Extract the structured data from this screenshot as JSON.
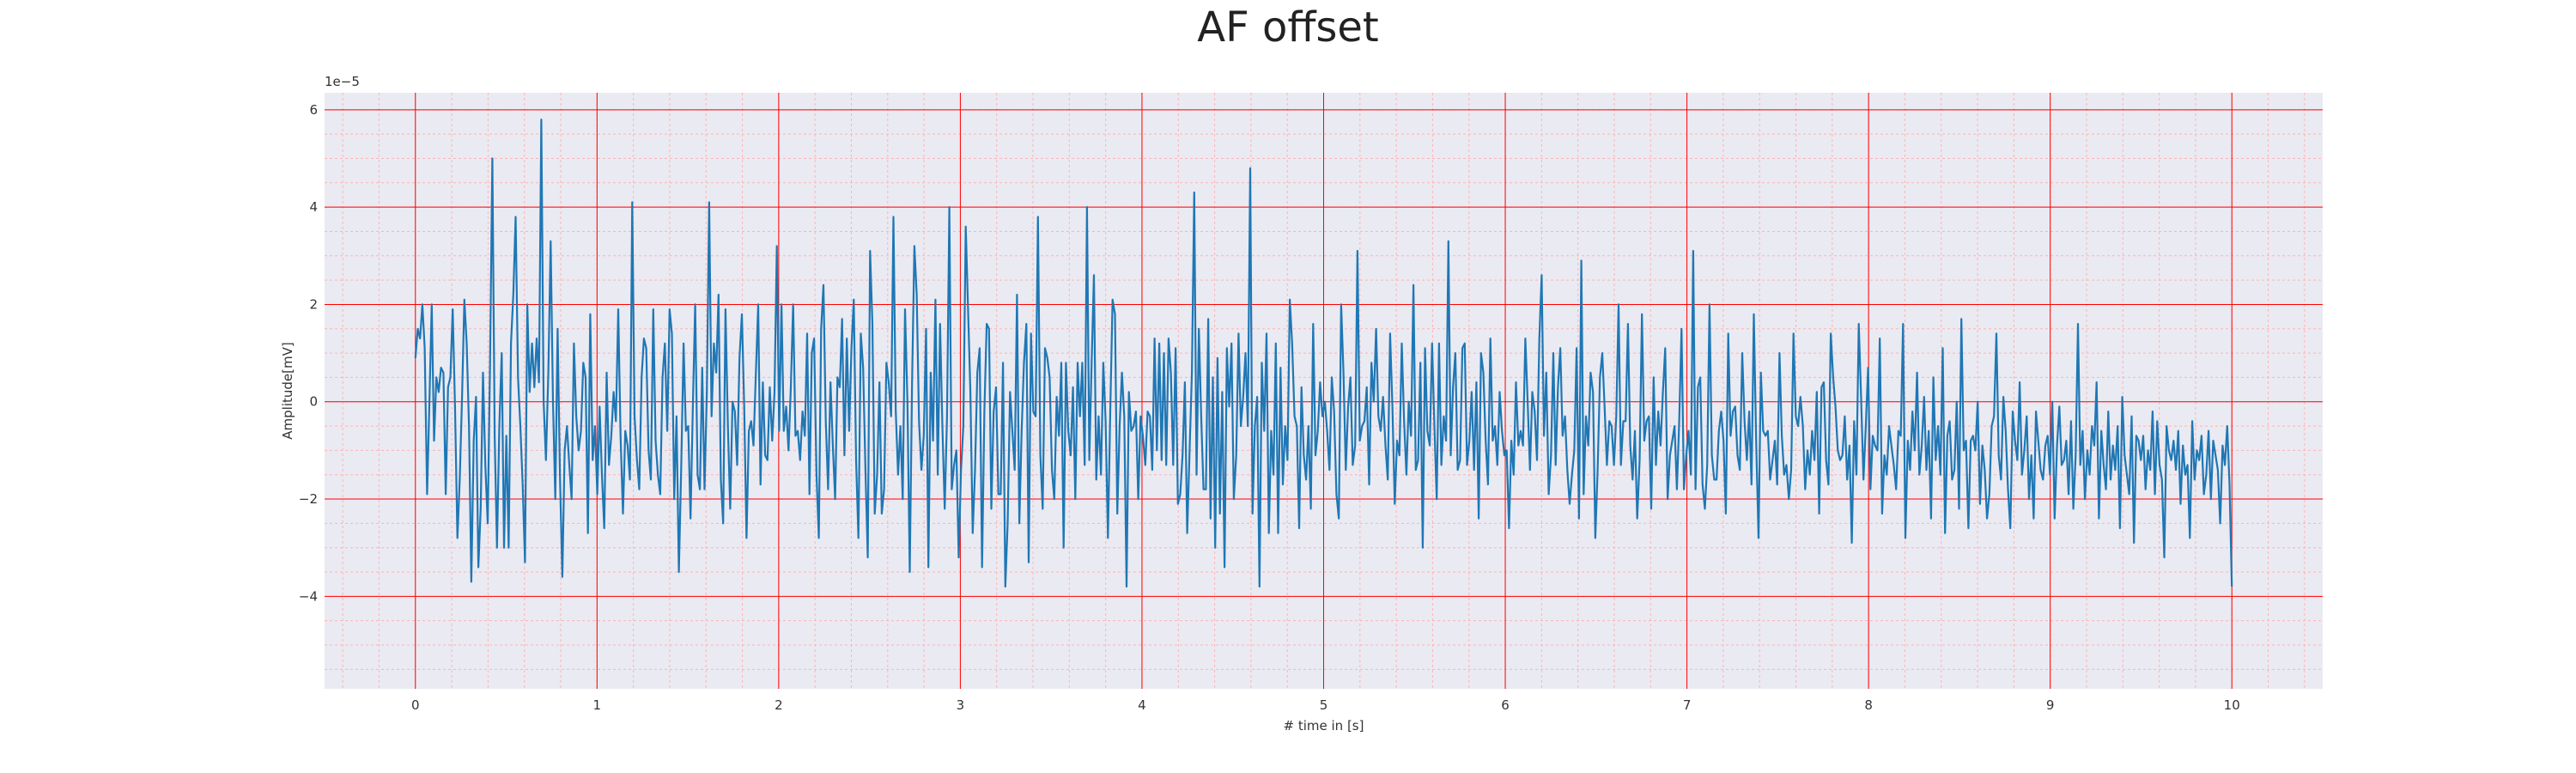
{
  "chart_data": {
    "type": "line",
    "title": "AF offset",
    "xlabel": "# time in [s]",
    "ylabel": "Amplitude[mV]",
    "y_offset_label": "1e−5",
    "xlim": [
      -0.5,
      10.5
    ],
    "ylim": [
      -5.9,
      6.35
    ],
    "x_ticks": [
      0,
      1,
      2,
      3,
      4,
      5,
      6,
      7,
      8,
      9,
      10
    ],
    "x_tick_labels": [
      "0",
      "1",
      "2",
      "3",
      "4",
      "5",
      "6",
      "7",
      "8",
      "9",
      "10"
    ],
    "y_ticks": [
      -4,
      -2,
      0,
      2,
      4,
      6
    ],
    "y_tick_labels": [
      "−4",
      "−2",
      "0",
      "2",
      "4",
      "6"
    ],
    "grid": true,
    "minor_grid": true,
    "colors": {
      "line": "#1f77b4",
      "plot_bg": "#eaeaf2",
      "major_grid": "#ff0000",
      "minor_grid": "#ffb3b3"
    },
    "series": [
      {
        "x_start": 0,
        "x_end": 10,
        "values": [
          0.9,
          1.5,
          1.3,
          2.0,
          1.1,
          -1.9,
          0.0,
          2.0,
          -0.8,
          0.5,
          0.2,
          0.7,
          0.6,
          -1.9,
          0.3,
          0.5,
          1.9,
          -0.1,
          -2.8,
          -1.6,
          0.1,
          2.1,
          1.2,
          -0.5,
          -3.7,
          -0.8,
          0.1,
          -3.4,
          -2.2,
          0.6,
          -1.3,
          -2.5,
          0.8,
          5.0,
          -0.7,
          -3.0,
          -0.5,
          1.0,
          -3.0,
          -0.7,
          -3.0,
          1.2,
          2.2,
          3.8,
          0.5,
          -0.5,
          -1.7,
          -3.3,
          2.0,
          0.2,
          1.2,
          0.3,
          1.3,
          0.4,
          5.8,
          0.0,
          -1.2,
          0.6,
          3.3,
          0.0,
          -2.0,
          1.5,
          -1.5,
          -3.6,
          -1.0,
          -0.5,
          -1.3,
          -2.0,
          1.2,
          -0.3,
          -1.0,
          -0.6,
          0.8,
          0.5,
          -2.7,
          1.8,
          -1.2,
          -0.5,
          -1.9,
          -0.1,
          -1.5,
          -2.6,
          0.6,
          -1.3,
          -0.7,
          0.2,
          -0.4,
          1.9,
          -0.7,
          -2.3,
          -0.6,
          -0.9,
          -1.6,
          4.1,
          -0.3,
          -1.2,
          -1.8,
          0.5,
          1.3,
          1.1,
          -1.0,
          -1.6,
          1.9,
          -0.8,
          -1.5,
          -1.9,
          0.5,
          1.2,
          -0.6,
          1.9,
          1.4,
          -2.0,
          -0.3,
          -3.5,
          -1.3,
          1.2,
          -0.6,
          -0.5,
          -2.4,
          -0.1,
          2.0,
          -1.5,
          -1.8,
          0.7,
          -1.8,
          0.2,
          4.1,
          -0.3,
          1.2,
          0.6,
          2.2,
          -1.6,
          -2.5,
          1.9,
          -0.5,
          -2.2,
          0.0,
          -0.2,
          -1.3,
          0.9,
          1.8,
          -0.1,
          -2.8,
          -0.6,
          -0.4,
          -0.9,
          0.6,
          2.0,
          -1.7,
          0.4,
          -1.1,
          -1.2,
          0.3,
          -0.8,
          0.2,
          3.2,
          -0.6,
          2.0,
          -0.6,
          -0.1,
          -1.0,
          0.3,
          2.0,
          -0.7,
          -0.6,
          -1.2,
          -0.2,
          -0.7,
          1.4,
          -1.9,
          1.0,
          1.3,
          -1.5,
          -2.8,
          1.5,
          2.4,
          -0.4,
          -1.8,
          0.4,
          -0.9,
          -2.0,
          0.5,
          0.3,
          1.7,
          -1.1,
          1.3,
          -0.6,
          1.1,
          2.1,
          -1.2,
          -2.8,
          1.4,
          0.7,
          -1.4,
          -3.2,
          3.1,
          1.6,
          -2.3,
          -1.5,
          0.4,
          -2.3,
          -1.8,
          0.8,
          0.4,
          -0.3,
          3.8,
          -0.2,
          -1.5,
          -0.5,
          -2.0,
          1.9,
          0.0,
          -3.5,
          0.4,
          3.2,
          2.2,
          -0.4,
          -1.4,
          -0.7,
          1.5,
          -3.4,
          0.6,
          -0.8,
          2.1,
          -1.5,
          1.6,
          -0.5,
          -2.2,
          -0.3,
          4.0,
          -1.8,
          -1.3,
          -1.0,
          -3.2,
          -1.4,
          -0.5,
          3.6,
          1.9,
          0.2,
          -2.7,
          -1.4,
          0.6,
          1.1,
          -3.4,
          -0.2,
          1.6,
          1.5,
          -2.2,
          -0.2,
          0.3,
          -1.9,
          -1.9,
          0.8,
          -3.8,
          -2.5,
          0.2,
          -0.6,
          -1.4,
          2.2,
          -2.5,
          -0.6,
          0.8,
          1.6,
          -3.3,
          1.4,
          -0.2,
          -0.3,
          3.8,
          -1.1,
          -2.2,
          1.1,
          0.9,
          0.5,
          -1.4,
          -2.0,
          0.1,
          -0.7,
          0.8,
          -3.0,
          0.8,
          -0.6,
          -1.1,
          0.3,
          -2.0,
          0.8,
          -0.3,
          0.8,
          -1.3,
          4.0,
          -1.2,
          0.8,
          2.6,
          -1.6,
          -0.3,
          -1.5,
          0.8,
          -0.4,
          -2.8,
          -0.2,
          2.1,
          1.8,
          -2.3,
          -0.5,
          0.6,
          -0.3,
          -3.8,
          0.2,
          -0.6,
          -0.5,
          -0.2,
          -2.0,
          -0.3,
          -0.7,
          -1.3,
          -0.2,
          -0.3,
          -1.4,
          1.3,
          -1.0,
          1.2,
          -1.2,
          1.0,
          -1.3,
          1.3,
          0.6,
          -1.3,
          1.1,
          -2.1,
          -1.9,
          -1.1,
          0.4,
          -2.7,
          -1.0,
          0.6,
          4.3,
          -1.5,
          1.5,
          -0.3,
          -1.8,
          -1.8,
          1.7,
          -2.4,
          0.5,
          -3.0,
          0.9,
          -2.3,
          0.2,
          -3.4,
          1.1,
          -0.1,
          1.2,
          -2.0,
          -1.1,
          1.4,
          -0.5,
          0.1,
          1.0,
          -0.5,
          4.8,
          -2.3,
          -0.5,
          0.1,
          -3.8,
          0.8,
          -0.6,
          1.4,
          -2.7,
          -0.6,
          -1.5,
          1.2,
          -2.7,
          0.7,
          -1.7,
          -0.5,
          -1.2,
          2.1,
          1.2,
          -0.3,
          -0.5,
          -2.6,
          0.3,
          -1.1,
          -1.6,
          -0.5,
          -2.2,
          1.6,
          -1.1,
          -0.6,
          0.4,
          -0.3,
          0.0,
          -0.6,
          -1.4,
          0.5,
          -0.2,
          -1.9,
          -2.4,
          2.0,
          0.6,
          -1.4,
          -0.1,
          0.5,
          -1.3,
          -0.9,
          3.1,
          -0.8,
          -0.5,
          -0.4,
          0.3,
          -1.7,
          0.8,
          0.0,
          1.5,
          -0.3,
          -0.6,
          0.1,
          -0.9,
          -1.6,
          1.4,
          -0.1,
          -2.1,
          -0.8,
          -1.1,
          1.2,
          -0.4,
          -1.5,
          0.0,
          -0.7,
          2.4,
          -1.4,
          -1.2,
          0.8,
          -3.0,
          1.1,
          -0.6,
          -0.9,
          1.2,
          -0.5,
          -2.0,
          1.2,
          -1.3,
          -0.3,
          -0.8,
          3.3,
          -1.1,
          0.3,
          1.0,
          -1.4,
          -1.2,
          1.1,
          1.2,
          -1.3,
          -0.8,
          0.2,
          -1.4,
          0.4,
          -2.4,
          1.0,
          0.6,
          -0.8,
          -1.7,
          1.3,
          -0.8,
          -0.5,
          -1.3,
          0.2,
          -0.6,
          -1.1,
          -1.0,
          -2.6,
          -0.8,
          -1.5,
          0.4,
          -0.9,
          -0.6,
          -0.9,
          1.3,
          0.0,
          -1.4,
          0.2,
          -0.2,
          -1.2,
          1.3,
          2.6,
          -0.7,
          0.6,
          -1.9,
          -1.1,
          1.0,
          -1.3,
          0.3,
          1.1,
          -0.7,
          -0.3,
          -1.4,
          -2.1,
          -1.5,
          -1.0,
          1.1,
          -2.4,
          2.9,
          -1.9,
          -0.3,
          -0.9,
          0.6,
          0.2,
          -2.8,
          -1.4,
          0.5,
          1.0,
          -0.1,
          -1.3,
          -0.4,
          -0.5,
          -1.3,
          -0.3,
          2.0,
          -1.3,
          -0.4,
          -0.4,
          1.6,
          -0.9,
          -1.6,
          -0.6,
          -2.4,
          -1.2,
          1.8,
          -0.8,
          -0.4,
          -0.3,
          -2.2,
          0.5,
          -1.3,
          -0.2,
          -0.9,
          0.2,
          1.1,
          -2.0,
          -1.1,
          -0.8,
          -0.5,
          -1.8,
          -0.4,
          1.5,
          -1.8,
          -1.1,
          -0.6,
          -1.5,
          3.1,
          -1.8,
          0.3,
          0.5,
          -1.7,
          -2.2,
          -1.3,
          2.0,
          -1.1,
          -1.6,
          -1.6,
          -0.6,
          -0.2,
          -0.8,
          -2.3,
          1.4,
          -0.7,
          -0.2,
          -0.1,
          -1.1,
          -1.4,
          1.0,
          -0.4,
          -1.2,
          -0.2,
          -1.7,
          1.8,
          -0.8,
          -2.8,
          0.6,
          -0.6,
          -0.7,
          -0.6,
          -1.6,
          -1.2,
          -0.8,
          -1.7,
          1.0,
          -0.7,
          -1.5,
          -1.3,
          -2.0,
          -1.4,
          1.4,
          -0.3,
          -0.5,
          0.1,
          -0.5,
          -1.8,
          -1.0,
          -1.5,
          -0.6,
          -1.2,
          0.2,
          -2.3,
          0.3,
          0.4,
          -1.2,
          -1.7,
          1.4,
          0.5,
          -0.1,
          -1.0,
          -1.2,
          -1.1,
          -0.3,
          -1.6,
          -0.9,
          -2.9,
          -0.4,
          -1.5,
          1.6,
          0.1,
          -1.6,
          -0.5,
          0.7,
          -1.8,
          -0.7,
          -0.9,
          -1.0,
          1.3,
          -2.3,
          -1.1,
          -1.5,
          -0.5,
          -0.9,
          -1.3,
          -1.8,
          -0.6,
          -0.7,
          1.6,
          -2.8,
          -0.8,
          -1.4,
          -0.2,
          -1.0,
          0.6,
          -1.5,
          -0.9,
          0.1,
          -1.4,
          -0.6,
          -2.4,
          0.5,
          -1.2,
          -0.5,
          -1.5,
          1.1,
          -2.7,
          -0.7,
          -0.4,
          -1.6,
          -1.4,
          0.0,
          -2.2,
          1.7,
          -1.0,
          -0.8,
          -2.6,
          -0.8,
          -0.7,
          -1.0,
          0.0,
          -2.1,
          -0.9,
          -1.4,
          -2.4,
          -1.9,
          -0.5,
          -0.3,
          1.4,
          -1.1,
          -1.6,
          0.1,
          -0.6,
          -1.8,
          -2.6,
          -0.2,
          -0.8,
          -1.2,
          0.4,
          -1.5,
          -1.0,
          -0.3,
          -2.0,
          -1.1,
          -2.4,
          -0.2,
          -0.8,
          -1.4,
          -1.6,
          -0.9,
          -0.7,
          -1.5,
          0.0,
          -2.4,
          -0.9,
          -0.1,
          -1.3,
          -1.2,
          -0.8,
          -1.9,
          -0.4,
          -2.2,
          -1.1,
          1.6,
          -1.3,
          -0.6,
          -2.0,
          -1.0,
          -1.5,
          -0.5,
          -0.9,
          0.4,
          -2.4,
          -0.6,
          -1.3,
          -1.8,
          -0.2,
          -1.6,
          -0.9,
          -1.4,
          -0.5,
          -2.6,
          0.1,
          -1.1,
          -1.5,
          -1.9,
          -0.3,
          -2.9,
          -0.7,
          -0.8,
          -1.2,
          -0.7,
          -1.8,
          -1.0,
          -1.4,
          -0.2,
          -1.9,
          -0.4,
          -1.3,
          -1.6,
          -3.2,
          -0.5,
          -1.0,
          -1.2,
          -0.8,
          -1.4,
          -0.6,
          -2.1,
          -0.9,
          -1.5,
          -1.3,
          -2.8,
          -0.4,
          -1.6,
          -1.0,
          -1.2,
          -0.7,
          -1.9,
          -1.5,
          -0.6,
          -2.0,
          -0.8,
          -1.1,
          -1.4,
          -2.5,
          -0.9,
          -1.3,
          -0.5,
          -1.7,
          -3.8
        ]
      }
    ]
  }
}
